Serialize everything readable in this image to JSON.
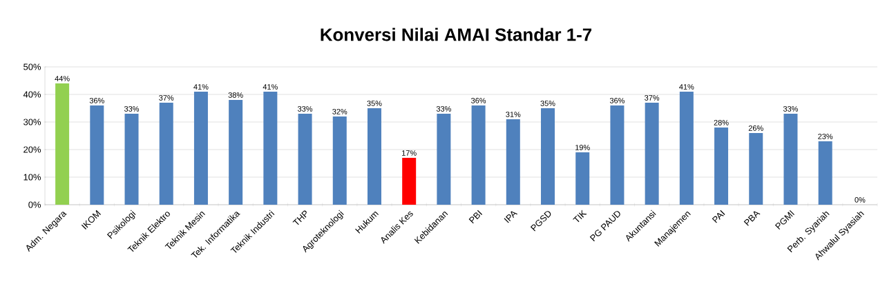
{
  "chart_data": {
    "type": "bar",
    "title": "Konversi Nilai AMAI Standar 1-7",
    "categories": [
      "Adm. Negara",
      "IKOM",
      "Psikologi",
      "Teknik Elektro",
      "Teknik Mesin",
      "Tek. Informatika",
      "Teknik Industri",
      "THP",
      "Agroteknologi",
      "Hukum",
      "Analis Kes",
      "Kebidanan",
      "PBI",
      "IPA",
      "PGSD",
      "TIK",
      "PG PAUD",
      "Akuntansi",
      "Manajemen",
      "PAI",
      "PBA",
      "PGMI",
      "Perb. Syariah",
      "Ahwalul Syasiah"
    ],
    "values": [
      44,
      36,
      33,
      37,
      41,
      38,
      41,
      33,
      32,
      35,
      17,
      33,
      36,
      31,
      35,
      19,
      36,
      37,
      41,
      28,
      26,
      33,
      23,
      0
    ],
    "value_labels": [
      "44%",
      "36%",
      "33%",
      "37%",
      "41%",
      "38%",
      "41%",
      "33%",
      "32%",
      "35%",
      "17%",
      "33%",
      "36%",
      "31%",
      "35%",
      "19%",
      "36%",
      "37%",
      "41%",
      "28%",
      "26%",
      "33%",
      "23%",
      "0%"
    ],
    "colors": [
      "#92d050",
      "#4f81bd",
      "#4f81bd",
      "#4f81bd",
      "#4f81bd",
      "#4f81bd",
      "#4f81bd",
      "#4f81bd",
      "#4f81bd",
      "#4f81bd",
      "#ff0000",
      "#4f81bd",
      "#4f81bd",
      "#4f81bd",
      "#4f81bd",
      "#4f81bd",
      "#4f81bd",
      "#4f81bd",
      "#4f81bd",
      "#4f81bd",
      "#4f81bd",
      "#4f81bd",
      "#4f81bd",
      "#4f81bd"
    ],
    "ylim": [
      0,
      50
    ],
    "yticks": [
      {
        "value": 0,
        "label": "0%"
      },
      {
        "value": 10,
        "label": "10%"
      },
      {
        "value": 20,
        "label": "20%"
      },
      {
        "value": 30,
        "label": "30%"
      },
      {
        "value": 40,
        "label": "40%"
      },
      {
        "value": 50,
        "label": "50%"
      }
    ],
    "grid": "y"
  }
}
